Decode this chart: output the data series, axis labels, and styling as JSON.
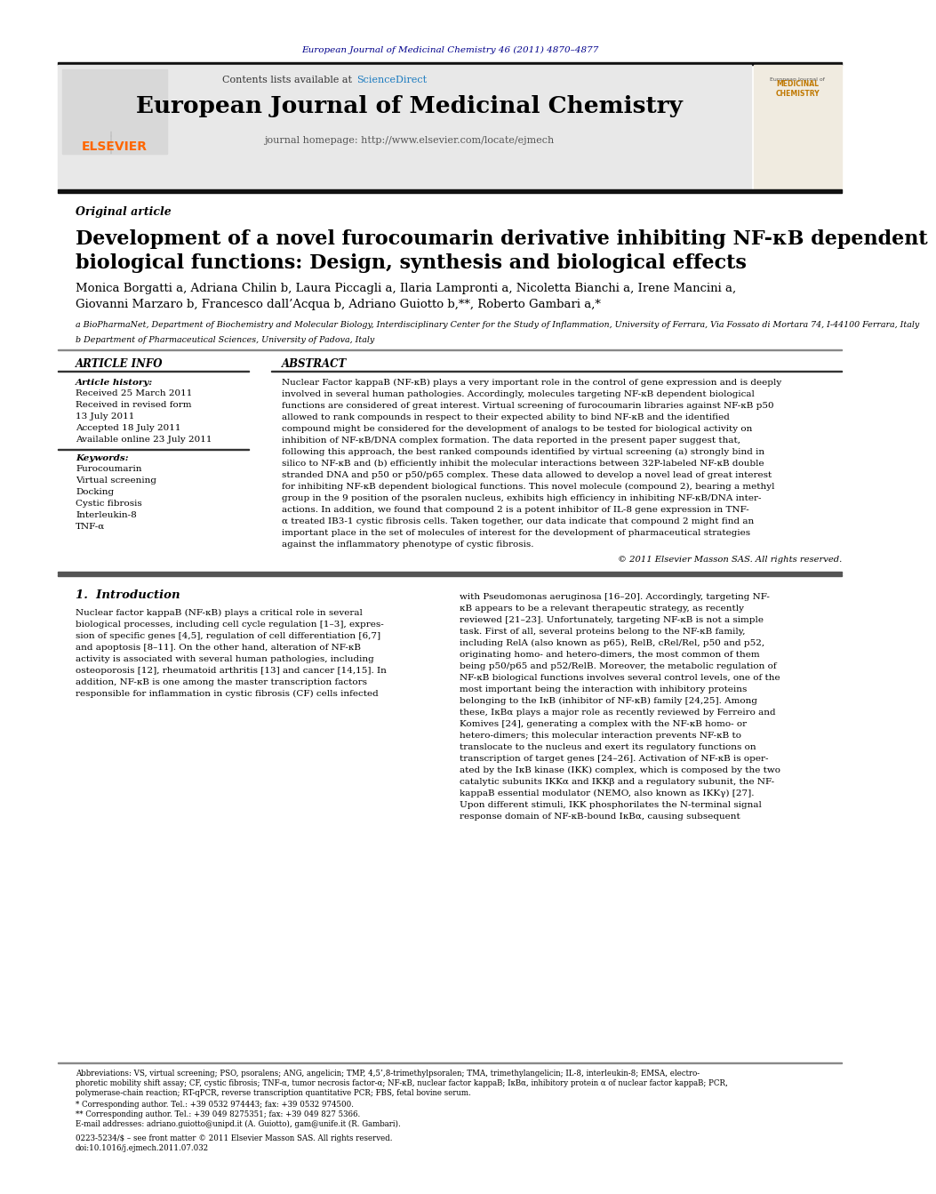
{
  "page_bg": "#ffffff",
  "top_journal_ref": "European Journal of Medicinal Chemistry 46 (2011) 4870–4877",
  "top_journal_ref_color": "#00008B",
  "header_bg": "#e8e8e8",
  "sciencedirect_color": "#1a7abf",
  "journal_title": "European Journal of Medicinal Chemistry",
  "journal_homepage": "journal homepage: http://www.elsevier.com/locate/ejmech",
  "article_type": "Original article",
  "paper_title_line1": "Development of a novel furocoumarin derivative inhibiting NF-κB dependent",
  "paper_title_line2": "biological functions: Design, synthesis and biological effects",
  "authors_line1": "Monica Borgatti a, Adriana Chilin b, Laura Piccagli a, Ilaria Lampronti a, Nicoletta Bianchi a, Irene Mancini a,",
  "authors_line2": "Giovanni Marzaro b, Francesco dall’Acqua b, Adriano Guiotto b,**, Roberto Gambari a,*",
  "affil_a": "a BioPharmaNet, Department of Biochemistry and Molecular Biology, Interdisciplinary Center for the Study of Inflammation, University of Ferrara, Via Fossato di Mortara 74, I-44100 Ferrara, Italy",
  "affil_b": "b Department of Pharmaceutical Sciences, University of Padova, Italy",
  "article_info_header": "ARTICLE INFO",
  "abstract_header": "ABSTRACT",
  "article_history_label": "Article history:",
  "article_history_lines": [
    "Received 25 March 2011",
    "Received in revised form",
    "13 July 2011",
    "Accepted 18 July 2011",
    "Available online 23 July 2011"
  ],
  "keywords_label": "Keywords:",
  "keywords_lines": [
    "Furocoumarin",
    "Virtual screening",
    "Docking",
    "Cystic fibrosis",
    "Interleukin-8",
    "TNF-α"
  ],
  "abstract_lines": [
    "Nuclear Factor kappaB (NF-κB) plays a very important role in the control of gene expression and is deeply",
    "involved in several human pathologies. Accordingly, molecules targeting NF-κB dependent biological",
    "functions are considered of great interest. Virtual screening of furocoumarin libraries against NF-κB p50",
    "allowed to rank compounds in respect to their expected ability to bind NF-κB and the identified",
    "compound might be considered for the development of analogs to be tested for biological activity on",
    "inhibition of NF-κB/DNA complex formation. The data reported in the present paper suggest that,",
    "following this approach, the best ranked compounds identified by virtual screening (a) strongly bind in",
    "silico to NF-κB and (b) efficiently inhibit the molecular interactions between 32P-labeled NF-κB double",
    "stranded DNA and p50 or p50/p65 complex. These data allowed to develop a novel lead of great interest",
    "for inhibiting NF-κB dependent biological functions. This novel molecule (compound 2), bearing a methyl",
    "group in the 9 position of the psoralen nucleus, exhibits high efficiency in inhibiting NF-κB/DNA inter-",
    "actions. In addition, we found that compound 2 is a potent inhibitor of IL-8 gene expression in TNF-",
    "α treated IB3-1 cystic fibrosis cells. Taken together, our data indicate that compound 2 might find an",
    "important place in the set of molecules of interest for the development of pharmaceutical strategies",
    "against the inflammatory phenotype of cystic fibrosis."
  ],
  "copyright": "© 2011 Elsevier Masson SAS. All rights reserved.",
  "intro_header": "1.  Introduction",
  "intro_left_lines": [
    "Nuclear factor kappaB (NF-κB) plays a critical role in several",
    "biological processes, including cell cycle regulation [1–3], expres-",
    "sion of specific genes [4,5], regulation of cell differentiation [6,7]",
    "and apoptosis [8–11]. On the other hand, alteration of NF-κB",
    "activity is associated with several human pathologies, including",
    "osteoporosis [12], rheumatoid arthritis [13] and cancer [14,15]. In",
    "addition, NF-κB is one among the master transcription factors",
    "responsible for inflammation in cystic fibrosis (CF) cells infected"
  ],
  "intro_right_lines": [
    "with Pseudomonas aeruginosa [16–20]. Accordingly, targeting NF-",
    "κB appears to be a relevant therapeutic strategy, as recently",
    "reviewed [21–23]. Unfortunately, targeting NF-κB is not a simple",
    "task. First of all, several proteins belong to the NF-κB family,",
    "including RelA (also known as p65), RelB, cRel/Rel, p50 and p52,",
    "originating homo- and hetero-dimers, the most common of them",
    "being p50/p65 and p52/RelB. Moreover, the metabolic regulation of",
    "NF-κB biological functions involves several control levels, one of the",
    "most important being the interaction with inhibitory proteins",
    "belonging to the IκB (inhibitor of NF-κB) family [24,25]. Among",
    "these, IκBα plays a major role as recently reviewed by Ferreiro and",
    "Komives [24], generating a complex with the NF-κB homo- or",
    "hetero-dimers; this molecular interaction prevents NF-κB to",
    "translocate to the nucleus and exert its regulatory functions on",
    "transcription of target genes [24–26]. Activation of NF-κB is oper-",
    "ated by the IκB kinase (IKK) complex, which is composed by the two",
    "catalytic subunits IKKα and IKKβ and a regulatory subunit, the NF-",
    "kappaB essential modulator (NEMO, also known as IKKγ) [27].",
    "Upon different stimuli, IKK phosphorilates the N-terminal signal",
    "response domain of NF-κB-bound IκBα, causing subsequent"
  ],
  "footnote_abbrev_lines": [
    "Abbreviations: VS, virtual screening; PSO, psoralens; ANG, angelicin; TMP, 4,5’,8-trimethylpsoralen; TMA, trimethylangelicin; IL-8, interleukin-8; EMSA, electro-",
    "phoretic mobility shift assay; CF, cystic fibrosis; TNF-α, tumor necrosis factor-α; NF-κB, nuclear factor kappaB; IκBα, inhibitory protein α of nuclear factor kappaB; PCR,",
    "polymerase-chain reaction; RT-qPCR, reverse transcription quantitative PCR; FBS, fetal bovine serum."
  ],
  "footnote_star": "* Corresponding author. Tel.: +39 0532 974443; fax: +39 0532 974500.",
  "footnote_dstar": "** Corresponding author. Tel.: +39 049 8275351; fax: +39 049 827 5366.",
  "footnote_email": "E-mail addresses: adriano.guiotto@unipd.it (A. Guiotto), gam@unife.it (R. Gambari).",
  "issn_line": "0223-5234/$ – see front matter © 2011 Elsevier Masson SAS. All rights reserved.",
  "doi_line": "doi:10.1016/j.ejmech.2011.07.032",
  "elsevier_color": "#FF6600"
}
